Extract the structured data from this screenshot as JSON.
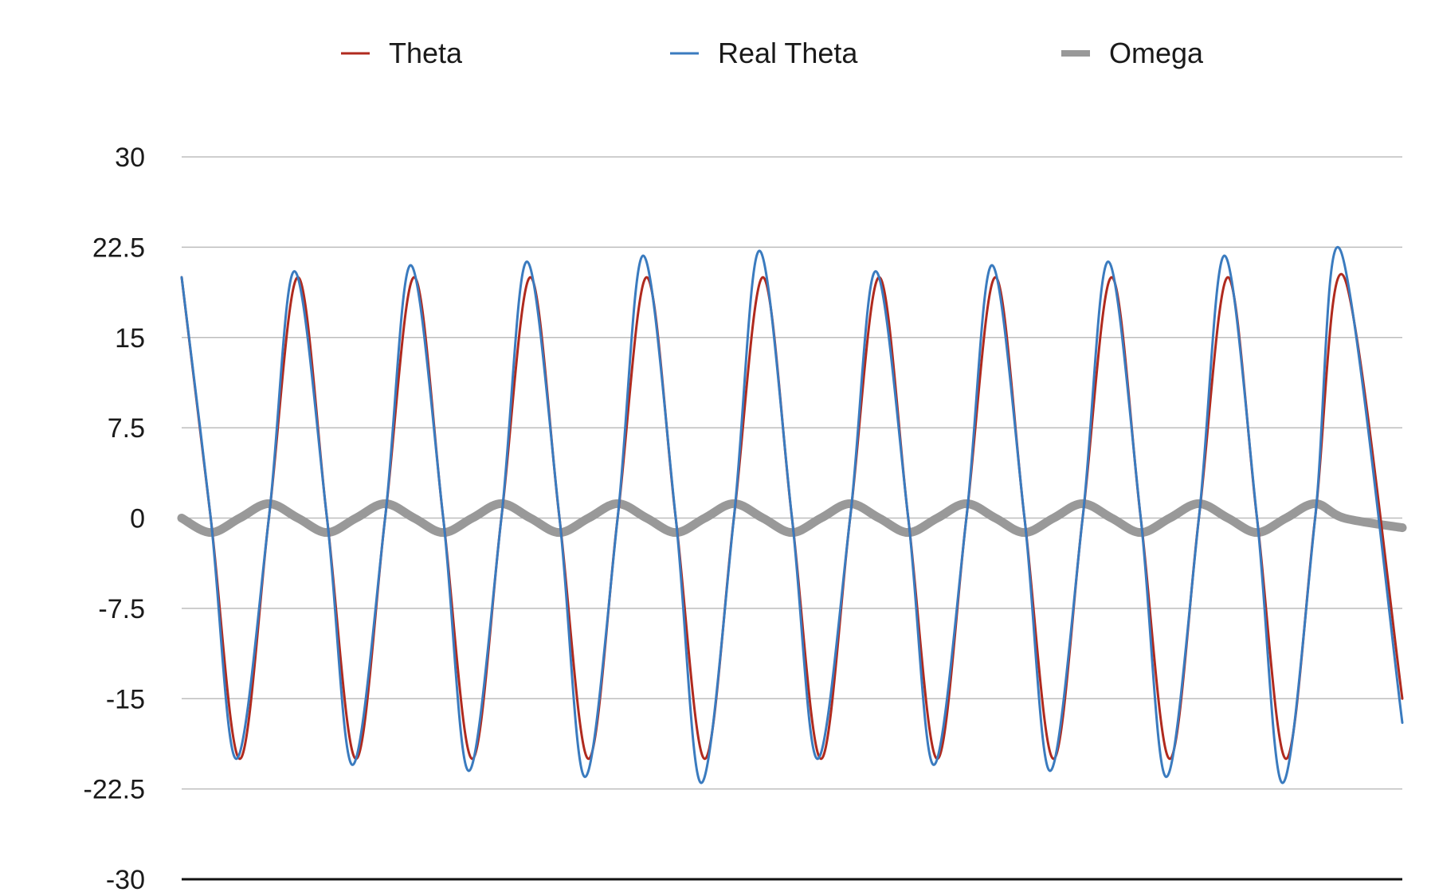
{
  "chart_data": {
    "type": "line",
    "title": "",
    "xlabel": "",
    "ylabel": "",
    "ylim": [
      -30,
      30
    ],
    "y_ticks": [
      "30",
      "22.5",
      "15",
      "7.5",
      "0",
      "-7.5",
      "-15",
      "-22.5",
      "-30"
    ],
    "grid": true,
    "legend_position": "top-center",
    "x_range": [
      0,
      10.5
    ],
    "series": [
      {
        "name": "Theta",
        "color": "#b02a1e",
        "values": [
          [
            0.0,
            20.0
          ],
          [
            0.25,
            0.0
          ],
          [
            0.5,
            -20.0
          ],
          [
            0.75,
            0.0
          ],
          [
            1.0,
            20.0
          ],
          [
            1.25,
            0.0
          ],
          [
            1.5,
            -20.0
          ],
          [
            1.75,
            0.0
          ],
          [
            2.0,
            20.0
          ],
          [
            2.25,
            0.0
          ],
          [
            2.5,
            -20.0
          ],
          [
            2.75,
            0.0
          ],
          [
            3.0,
            20.0
          ],
          [
            3.25,
            0.0
          ],
          [
            3.5,
            -20.0
          ],
          [
            3.75,
            0.0
          ],
          [
            4.0,
            20.0
          ],
          [
            4.25,
            0.0
          ],
          [
            4.5,
            -20.0
          ],
          [
            4.75,
            0.0
          ],
          [
            5.0,
            20.0
          ],
          [
            5.25,
            0.0
          ],
          [
            5.5,
            -20.0
          ],
          [
            5.75,
            0.0
          ],
          [
            6.0,
            20.0
          ],
          [
            6.25,
            0.0
          ],
          [
            6.5,
            -20.0
          ],
          [
            6.75,
            0.0
          ],
          [
            7.0,
            20.0
          ],
          [
            7.25,
            0.0
          ],
          [
            7.5,
            -20.0
          ],
          [
            7.75,
            0.0
          ],
          [
            8.0,
            20.0
          ],
          [
            8.25,
            0.0
          ],
          [
            8.5,
            -20.0
          ],
          [
            8.75,
            0.0
          ],
          [
            9.0,
            20.0
          ],
          [
            9.25,
            0.0
          ],
          [
            9.5,
            -20.0
          ],
          [
            9.75,
            0.0
          ],
          [
            10.0,
            20.0
          ],
          [
            10.5,
            -15.0
          ]
        ]
      },
      {
        "name": "Real Theta",
        "color": "#3a7bbf",
        "values": [
          [
            0.0,
            20.0
          ],
          [
            0.25,
            0.0
          ],
          [
            0.47,
            -20.0
          ],
          [
            0.75,
            0.0
          ],
          [
            0.97,
            20.5
          ],
          [
            1.25,
            0.0
          ],
          [
            1.47,
            -20.5
          ],
          [
            1.75,
            0.0
          ],
          [
            1.97,
            21.0
          ],
          [
            2.25,
            0.0
          ],
          [
            2.47,
            -21.0
          ],
          [
            2.75,
            0.0
          ],
          [
            2.97,
            21.3
          ],
          [
            3.25,
            0.0
          ],
          [
            3.47,
            -21.5
          ],
          [
            3.75,
            0.0
          ],
          [
            3.97,
            21.8
          ],
          [
            4.25,
            0.0
          ],
          [
            4.47,
            -22.0
          ],
          [
            4.75,
            0.0
          ],
          [
            4.97,
            22.2
          ],
          [
            5.25,
            0.0
          ],
          [
            5.47,
            -20.0
          ],
          [
            5.75,
            0.0
          ],
          [
            5.97,
            20.5
          ],
          [
            6.25,
            0.0
          ],
          [
            6.47,
            -20.5
          ],
          [
            6.75,
            0.0
          ],
          [
            6.97,
            21.0
          ],
          [
            7.25,
            0.0
          ],
          [
            7.47,
            -21.0
          ],
          [
            7.75,
            0.0
          ],
          [
            7.97,
            21.3
          ],
          [
            8.25,
            0.0
          ],
          [
            8.47,
            -21.5
          ],
          [
            8.75,
            0.0
          ],
          [
            8.97,
            21.8
          ],
          [
            9.25,
            0.0
          ],
          [
            9.47,
            -22.0
          ],
          [
            9.75,
            0.0
          ],
          [
            9.97,
            22.2
          ],
          [
            10.5,
            -17.0
          ]
        ]
      },
      {
        "name": "Omega",
        "color": "#999999",
        "values": [
          [
            0.0,
            0.0
          ],
          [
            0.25,
            -1.2
          ],
          [
            0.5,
            0.0
          ],
          [
            0.75,
            1.2
          ],
          [
            1.0,
            0.0
          ],
          [
            1.25,
            -1.2
          ],
          [
            1.5,
            0.0
          ],
          [
            1.75,
            1.2
          ],
          [
            2.0,
            0.0
          ],
          [
            2.25,
            -1.2
          ],
          [
            2.5,
            0.0
          ],
          [
            2.75,
            1.2
          ],
          [
            3.0,
            0.0
          ],
          [
            3.25,
            -1.2
          ],
          [
            3.5,
            0.0
          ],
          [
            3.75,
            1.2
          ],
          [
            4.0,
            0.0
          ],
          [
            4.25,
            -1.2
          ],
          [
            4.5,
            0.0
          ],
          [
            4.75,
            1.2
          ],
          [
            5.0,
            0.0
          ],
          [
            5.25,
            -1.2
          ],
          [
            5.5,
            0.0
          ],
          [
            5.75,
            1.2
          ],
          [
            6.0,
            0.0
          ],
          [
            6.25,
            -1.2
          ],
          [
            6.5,
            0.0
          ],
          [
            6.75,
            1.2
          ],
          [
            7.0,
            0.0
          ],
          [
            7.25,
            -1.2
          ],
          [
            7.5,
            0.0
          ],
          [
            7.75,
            1.2
          ],
          [
            8.0,
            0.0
          ],
          [
            8.25,
            -1.2
          ],
          [
            8.5,
            0.0
          ],
          [
            8.75,
            1.2
          ],
          [
            9.0,
            0.0
          ],
          [
            9.25,
            -1.2
          ],
          [
            9.5,
            0.0
          ],
          [
            9.75,
            1.2
          ],
          [
            10.0,
            0.0
          ],
          [
            10.5,
            -0.8
          ]
        ]
      }
    ]
  }
}
